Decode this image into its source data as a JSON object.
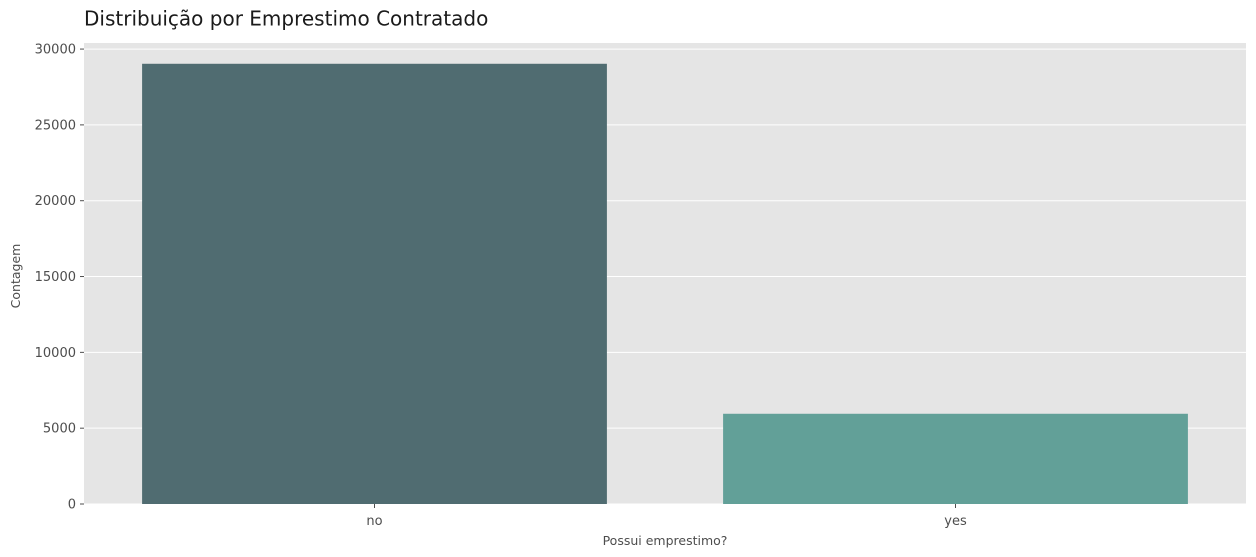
{
  "chart_data": {
    "type": "bar",
    "title": "Distribuição por Emprestimo Contratado",
    "xlabel": "Possui emprestimo?",
    "ylabel": "Contagem",
    "categories": [
      "no",
      "yes"
    ],
    "values": [
      29030,
      5950
    ],
    "ylim": [
      0,
      30400
    ],
    "yticks": [
      0,
      5000,
      10000,
      15000,
      20000,
      25000,
      30000
    ],
    "grid": true,
    "colors": {
      "background": "#e5e5e5",
      "grid": "#ffffff",
      "bars": [
        "#506c71",
        "#62a098"
      ]
    }
  }
}
